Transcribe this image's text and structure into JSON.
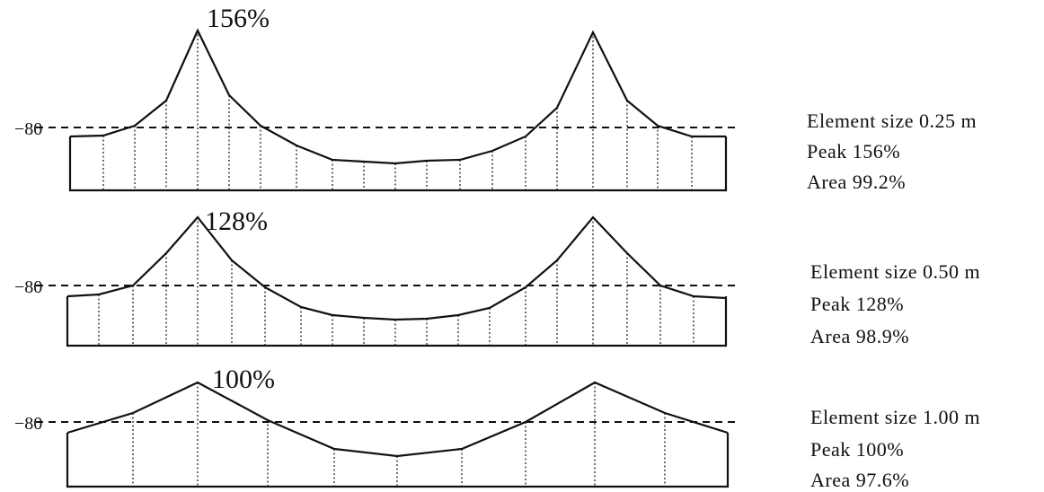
{
  "panels": [
    {
      "peak_label": "156%",
      "reference_label": "−80",
      "info": {
        "element_size": "Element size 0.25 m",
        "peak": "Peak 156%",
        "area": "Area 99.2%"
      },
      "element_size_m": 0.25,
      "peak_percent": 156,
      "area_percent": 99.2
    },
    {
      "peak_label": "128%",
      "reference_label": "−80",
      "info": {
        "element_size": "Element size 0.50 m",
        "peak": "Peak 128%",
        "area": "Area 98.9%"
      },
      "element_size_m": 0.5,
      "peak_percent": 128,
      "area_percent": 98.9
    },
    {
      "peak_label": "100%",
      "reference_label": "−80",
      "info": {
        "element_size": "Element size 1.00 m",
        "peak": "Peak 100%",
        "area": "Area 97.6%"
      },
      "element_size_m": 1.0,
      "peak_percent": 100,
      "area_percent": 97.6
    }
  ]
}
